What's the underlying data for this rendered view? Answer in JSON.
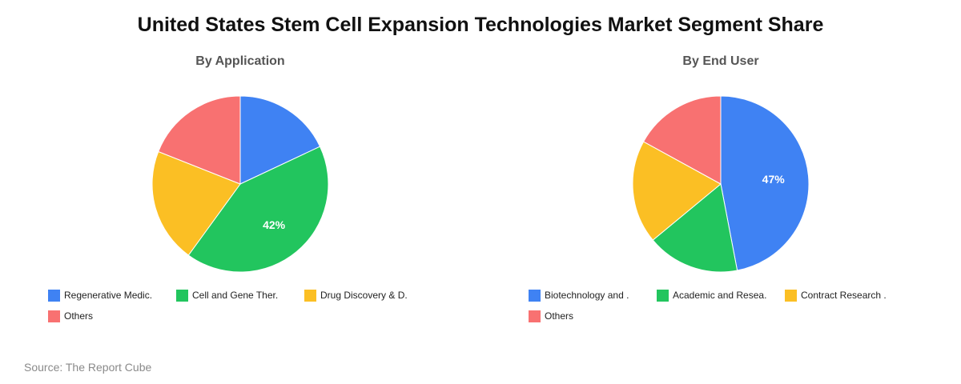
{
  "title": "United States Stem Cell Expansion Technologies Market Segment Share",
  "source": "Source: The Report Cube",
  "chart_data": [
    {
      "type": "pie",
      "title": "By Application",
      "categories": [
        "Regenerative Medic.",
        "Cell and Gene Ther.",
        "Drug Discovery & D.",
        "Others"
      ],
      "values": [
        18,
        42,
        21,
        19
      ],
      "colors": [
        "#3f82f3",
        "#22c55e",
        "#fbbf24",
        "#f87171"
      ],
      "data_labels": [
        "",
        "42%",
        "",
        ""
      ],
      "legend": "bottom"
    },
    {
      "type": "pie",
      "title": "By End User",
      "categories": [
        "Biotechnology and .",
        "Academic and Resea.",
        "Contract Research .",
        "Others"
      ],
      "values": [
        47,
        17,
        19,
        17
      ],
      "colors": [
        "#3f82f3",
        "#22c55e",
        "#fbbf24",
        "#f87171"
      ],
      "data_labels": [
        "47%",
        "",
        "",
        ""
      ],
      "legend": "bottom"
    }
  ]
}
